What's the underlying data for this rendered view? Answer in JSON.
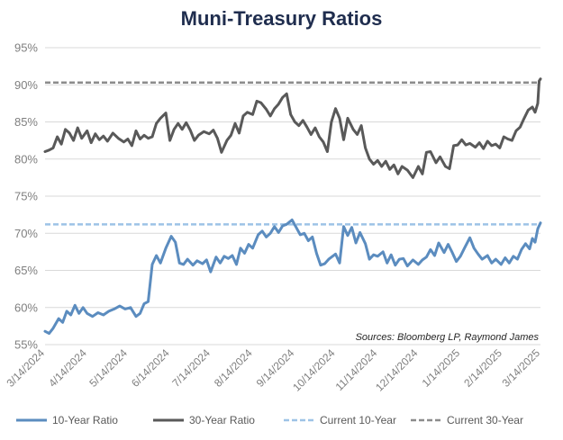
{
  "chart_data": {
    "type": "line",
    "title": "Muni-Treasury Ratios",
    "source": "Sources: Bloomberg LP, Raymond James",
    "ylim": [
      55,
      95
    ],
    "y_ticks": [
      "55%",
      "60%",
      "65%",
      "70%",
      "75%",
      "80%",
      "85%",
      "90%",
      "95%"
    ],
    "y_tick_values": [
      55,
      60,
      65,
      70,
      75,
      80,
      85,
      90,
      95
    ],
    "x_ticks": [
      "3/14/2024",
      "4/14/2024",
      "5/14/2024",
      "6/14/2024",
      "7/14/2024",
      "8/14/2024",
      "9/14/2024",
      "10/14/2024",
      "11/14/2024",
      "12/14/2024",
      "1/14/2025",
      "2/14/2025",
      "3/14/2025"
    ],
    "x_tick_dates": [
      "2024-03-14",
      "2024-04-14",
      "2024-05-14",
      "2024-06-14",
      "2024-07-14",
      "2024-08-14",
      "2024-09-14",
      "2024-10-14",
      "2024-11-14",
      "2024-12-14",
      "2025-01-14",
      "2025-02-14",
      "2025-03-14"
    ],
    "grid": true,
    "legend_position": "bottom",
    "series": [
      {
        "name": "10-Year Ratio",
        "color": "#5b8cbf",
        "style": "solid",
        "points": [
          [
            "2024-03-14",
            56.8
          ],
          [
            "2024-03-17",
            56.5
          ],
          [
            "2024-03-20",
            57.2
          ],
          [
            "2024-03-24",
            58.5
          ],
          [
            "2024-03-27",
            58.0
          ],
          [
            "2024-03-30",
            59.5
          ],
          [
            "2024-04-02",
            59.0
          ],
          [
            "2024-04-05",
            60.3
          ],
          [
            "2024-04-08",
            59.2
          ],
          [
            "2024-04-11",
            60.0
          ],
          [
            "2024-04-14",
            59.2
          ],
          [
            "2024-04-18",
            58.8
          ],
          [
            "2024-04-22",
            59.3
          ],
          [
            "2024-04-26",
            59.0
          ],
          [
            "2024-04-30",
            59.5
          ],
          [
            "2024-05-04",
            59.8
          ],
          [
            "2024-05-08",
            60.2
          ],
          [
            "2024-05-12",
            59.8
          ],
          [
            "2024-05-16",
            60.0
          ],
          [
            "2024-05-20",
            58.8
          ],
          [
            "2024-05-23",
            59.2
          ],
          [
            "2024-05-26",
            60.5
          ],
          [
            "2024-05-29",
            60.8
          ],
          [
            "2024-06-01",
            65.8
          ],
          [
            "2024-06-04",
            67.0
          ],
          [
            "2024-06-07",
            66.0
          ],
          [
            "2024-06-11",
            68.0
          ],
          [
            "2024-06-15",
            69.6
          ],
          [
            "2024-06-18",
            68.8
          ],
          [
            "2024-06-21",
            66.0
          ],
          [
            "2024-06-24",
            65.8
          ],
          [
            "2024-06-27",
            66.5
          ],
          [
            "2024-07-01",
            65.7
          ],
          [
            "2024-07-04",
            66.3
          ],
          [
            "2024-07-08",
            65.9
          ],
          [
            "2024-07-11",
            66.4
          ],
          [
            "2024-07-14",
            64.8
          ],
          [
            "2024-07-18",
            66.8
          ],
          [
            "2024-07-21",
            66.0
          ],
          [
            "2024-07-24",
            66.9
          ],
          [
            "2024-07-27",
            66.6
          ],
          [
            "2024-07-30",
            67.0
          ],
          [
            "2024-08-02",
            65.8
          ],
          [
            "2024-08-05",
            68.0
          ],
          [
            "2024-08-08",
            67.3
          ],
          [
            "2024-08-11",
            68.5
          ],
          [
            "2024-08-14",
            68.0
          ],
          [
            "2024-08-18",
            69.8
          ],
          [
            "2024-08-21",
            70.3
          ],
          [
            "2024-08-24",
            69.5
          ],
          [
            "2024-08-27",
            70.0
          ],
          [
            "2024-08-30",
            70.9
          ],
          [
            "2024-09-02",
            70.1
          ],
          [
            "2024-09-05",
            71.0
          ],
          [
            "2024-09-08",
            71.2
          ],
          [
            "2024-09-12",
            71.8
          ],
          [
            "2024-09-15",
            70.8
          ],
          [
            "2024-09-18",
            69.8
          ],
          [
            "2024-09-21",
            70.0
          ],
          [
            "2024-09-24",
            69.0
          ],
          [
            "2024-09-27",
            69.5
          ],
          [
            "2024-09-30",
            67.3
          ],
          [
            "2024-10-03",
            65.7
          ],
          [
            "2024-10-06",
            65.9
          ],
          [
            "2024-10-09",
            66.5
          ],
          [
            "2024-10-14",
            67.2
          ],
          [
            "2024-10-17",
            66.0
          ],
          [
            "2024-10-20",
            70.9
          ],
          [
            "2024-10-23",
            69.7
          ],
          [
            "2024-10-26",
            70.8
          ],
          [
            "2024-10-29",
            68.7
          ],
          [
            "2024-11-01",
            70.1
          ],
          [
            "2024-11-05",
            68.6
          ],
          [
            "2024-11-08",
            66.5
          ],
          [
            "2024-11-11",
            67.1
          ],
          [
            "2024-11-14",
            66.9
          ],
          [
            "2024-11-18",
            67.5
          ],
          [
            "2024-11-21",
            66.0
          ],
          [
            "2024-11-24",
            67.1
          ],
          [
            "2024-11-27",
            65.7
          ],
          [
            "2024-11-30",
            66.5
          ],
          [
            "2024-12-03",
            66.6
          ],
          [
            "2024-12-06",
            65.6
          ],
          [
            "2024-12-10",
            66.4
          ],
          [
            "2024-12-14",
            65.8
          ],
          [
            "2024-12-17",
            66.4
          ],
          [
            "2024-12-20",
            66.8
          ],
          [
            "2024-12-23",
            67.8
          ],
          [
            "2024-12-26",
            67.0
          ],
          [
            "2024-12-29",
            68.7
          ],
          [
            "2025-01-02",
            67.4
          ],
          [
            "2025-01-05",
            68.5
          ],
          [
            "2025-01-08",
            67.4
          ],
          [
            "2025-01-11",
            66.2
          ],
          [
            "2025-01-14",
            66.9
          ],
          [
            "2025-01-17",
            68.0
          ],
          [
            "2025-01-21",
            69.4
          ],
          [
            "2025-01-24",
            68.0
          ],
          [
            "2025-01-27",
            67.2
          ],
          [
            "2025-01-30",
            66.5
          ],
          [
            "2025-02-03",
            67.0
          ],
          [
            "2025-02-06",
            66.0
          ],
          [
            "2025-02-09",
            66.5
          ],
          [
            "2025-02-13",
            65.8
          ],
          [
            "2025-02-16",
            66.7
          ],
          [
            "2025-02-19",
            66.0
          ],
          [
            "2025-02-22",
            66.9
          ],
          [
            "2025-02-25",
            66.5
          ],
          [
            "2025-02-28",
            67.8
          ],
          [
            "2025-03-03",
            68.6
          ],
          [
            "2025-03-06",
            67.9
          ],
          [
            "2025-03-08",
            69.3
          ],
          [
            "2025-03-10",
            68.8
          ],
          [
            "2025-03-12",
            70.6
          ],
          [
            "2025-03-14",
            71.4
          ]
        ]
      },
      {
        "name": "30-Year Ratio",
        "color": "#595959",
        "style": "solid",
        "points": [
          [
            "2024-03-14",
            81.0
          ],
          [
            "2024-03-17",
            81.2
          ],
          [
            "2024-03-20",
            81.5
          ],
          [
            "2024-03-23",
            83.0
          ],
          [
            "2024-03-26",
            82.0
          ],
          [
            "2024-03-29",
            84.0
          ],
          [
            "2024-04-01",
            83.5
          ],
          [
            "2024-04-04",
            82.5
          ],
          [
            "2024-04-07",
            84.2
          ],
          [
            "2024-04-10",
            82.8
          ],
          [
            "2024-04-14",
            83.8
          ],
          [
            "2024-04-17",
            82.2
          ],
          [
            "2024-04-20",
            83.4
          ],
          [
            "2024-04-23",
            82.6
          ],
          [
            "2024-04-26",
            83.1
          ],
          [
            "2024-04-29",
            82.4
          ],
          [
            "2024-05-03",
            83.5
          ],
          [
            "2024-05-07",
            82.8
          ],
          [
            "2024-05-11",
            82.3
          ],
          [
            "2024-05-14",
            82.7
          ],
          [
            "2024-05-17",
            81.8
          ],
          [
            "2024-05-20",
            83.8
          ],
          [
            "2024-05-23",
            82.7
          ],
          [
            "2024-05-26",
            83.2
          ],
          [
            "2024-05-29",
            82.8
          ],
          [
            "2024-06-01",
            83.0
          ],
          [
            "2024-06-04",
            84.8
          ],
          [
            "2024-06-07",
            85.5
          ],
          [
            "2024-06-11",
            86.2
          ],
          [
            "2024-06-14",
            82.5
          ],
          [
            "2024-06-17",
            84.0
          ],
          [
            "2024-06-20",
            84.8
          ],
          [
            "2024-06-23",
            84.0
          ],
          [
            "2024-06-26",
            84.9
          ],
          [
            "2024-06-29",
            83.9
          ],
          [
            "2024-07-02",
            82.5
          ],
          [
            "2024-07-05",
            83.2
          ],
          [
            "2024-07-09",
            83.7
          ],
          [
            "2024-07-13",
            83.4
          ],
          [
            "2024-07-16",
            83.9
          ],
          [
            "2024-07-19",
            82.8
          ],
          [
            "2024-07-22",
            80.9
          ],
          [
            "2024-07-26",
            82.5
          ],
          [
            "2024-07-29",
            83.2
          ],
          [
            "2024-08-01",
            84.8
          ],
          [
            "2024-08-04",
            83.5
          ],
          [
            "2024-08-07",
            85.8
          ],
          [
            "2024-08-10",
            86.3
          ],
          [
            "2024-08-14",
            86.0
          ],
          [
            "2024-08-17",
            87.8
          ],
          [
            "2024-08-20",
            87.6
          ],
          [
            "2024-08-24",
            86.7
          ],
          [
            "2024-08-27",
            85.8
          ],
          [
            "2024-08-30",
            86.8
          ],
          [
            "2024-09-02",
            87.4
          ],
          [
            "2024-09-05",
            88.3
          ],
          [
            "2024-09-08",
            88.8
          ],
          [
            "2024-09-11",
            86.0
          ],
          [
            "2024-09-14",
            85.0
          ],
          [
            "2024-09-17",
            84.5
          ],
          [
            "2024-09-20",
            85.2
          ],
          [
            "2024-09-23",
            84.3
          ],
          [
            "2024-09-26",
            83.3
          ],
          [
            "2024-09-29",
            84.2
          ],
          [
            "2024-10-02",
            83.0
          ],
          [
            "2024-10-05",
            82.3
          ],
          [
            "2024-10-08",
            81.0
          ],
          [
            "2024-10-11",
            85.0
          ],
          [
            "2024-10-14",
            86.8
          ],
          [
            "2024-10-17",
            85.5
          ],
          [
            "2024-10-20",
            82.6
          ],
          [
            "2024-10-23",
            85.5
          ],
          [
            "2024-10-27",
            84.0
          ],
          [
            "2024-10-30",
            83.3
          ],
          [
            "2024-11-02",
            84.5
          ],
          [
            "2024-11-05",
            81.5
          ],
          [
            "2024-11-08",
            80.0
          ],
          [
            "2024-11-11",
            79.3
          ],
          [
            "2024-11-14",
            79.8
          ],
          [
            "2024-11-17",
            79.0
          ],
          [
            "2024-11-20",
            79.7
          ],
          [
            "2024-11-23",
            78.6
          ],
          [
            "2024-11-26",
            79.2
          ],
          [
            "2024-11-29",
            78.0
          ],
          [
            "2024-12-02",
            79.0
          ],
          [
            "2024-12-06",
            78.5
          ],
          [
            "2024-12-10",
            77.5
          ],
          [
            "2024-12-14",
            79.0
          ],
          [
            "2024-12-17",
            78.0
          ],
          [
            "2024-12-20",
            80.9
          ],
          [
            "2024-12-23",
            81.0
          ],
          [
            "2024-12-27",
            79.5
          ],
          [
            "2024-12-30",
            80.3
          ],
          [
            "2025-01-03",
            79.0
          ],
          [
            "2025-01-06",
            78.7
          ],
          [
            "2025-01-09",
            81.8
          ],
          [
            "2025-01-12",
            81.9
          ],
          [
            "2025-01-15",
            82.6
          ],
          [
            "2025-01-18",
            81.9
          ],
          [
            "2025-01-21",
            82.1
          ],
          [
            "2025-01-25",
            81.6
          ],
          [
            "2025-01-28",
            82.2
          ],
          [
            "2025-01-31",
            81.4
          ],
          [
            "2025-02-03",
            82.4
          ],
          [
            "2025-02-06",
            81.8
          ],
          [
            "2025-02-09",
            82.0
          ],
          [
            "2025-02-12",
            81.5
          ],
          [
            "2025-02-15",
            83.0
          ],
          [
            "2025-02-18",
            82.7
          ],
          [
            "2025-02-21",
            82.5
          ],
          [
            "2025-02-24",
            83.8
          ],
          [
            "2025-02-27",
            84.3
          ],
          [
            "2025-03-02",
            85.5
          ],
          [
            "2025-03-05",
            86.6
          ],
          [
            "2025-03-08",
            87.0
          ],
          [
            "2025-03-10",
            86.3
          ],
          [
            "2025-03-12",
            87.5
          ],
          [
            "2025-03-13",
            90.5
          ],
          [
            "2025-03-14",
            90.8
          ]
        ]
      },
      {
        "name": "Current 10-Year",
        "color": "#9dc3e6",
        "style": "dashed",
        "constant": 71.2
      },
      {
        "name": "Current 30-Year",
        "color": "#8c8c8c",
        "style": "dashed",
        "constant": 90.3
      }
    ]
  }
}
